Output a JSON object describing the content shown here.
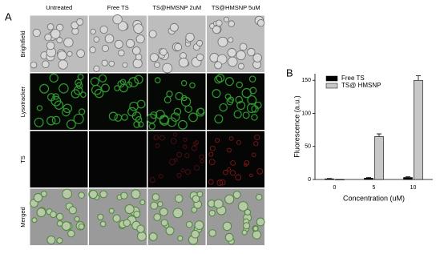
{
  "panel_a": {
    "label": "A",
    "columns": [
      "Untreated",
      "Free TS",
      "TS@HMSNP 2uM",
      "TS@HMSNP 5uM"
    ],
    "rows": [
      "Brightfield",
      "Lysotracker",
      "TS",
      "Merged"
    ]
  },
  "chart_data": {
    "type": "bar",
    "panel_label": "B",
    "categories": [
      "0",
      "5",
      "10"
    ],
    "series": [
      {
        "name": "Free TS",
        "color": "#000000",
        "values": [
          1,
          2,
          3
        ],
        "errors": [
          0.5,
          0.8,
          1
        ]
      },
      {
        "name": "TS@ HMSNP",
        "color": "#c8c8c8",
        "values": [
          0,
          65,
          150
        ],
        "errors": [
          0,
          4,
          7
        ]
      }
    ],
    "xlabel": "Concentration (uM)",
    "ylabel": "Fluorescence (a.u.)",
    "ylim": [
      0,
      160
    ],
    "yticks": [
      0,
      50,
      100,
      150
    ],
    "legend": "upper left"
  }
}
